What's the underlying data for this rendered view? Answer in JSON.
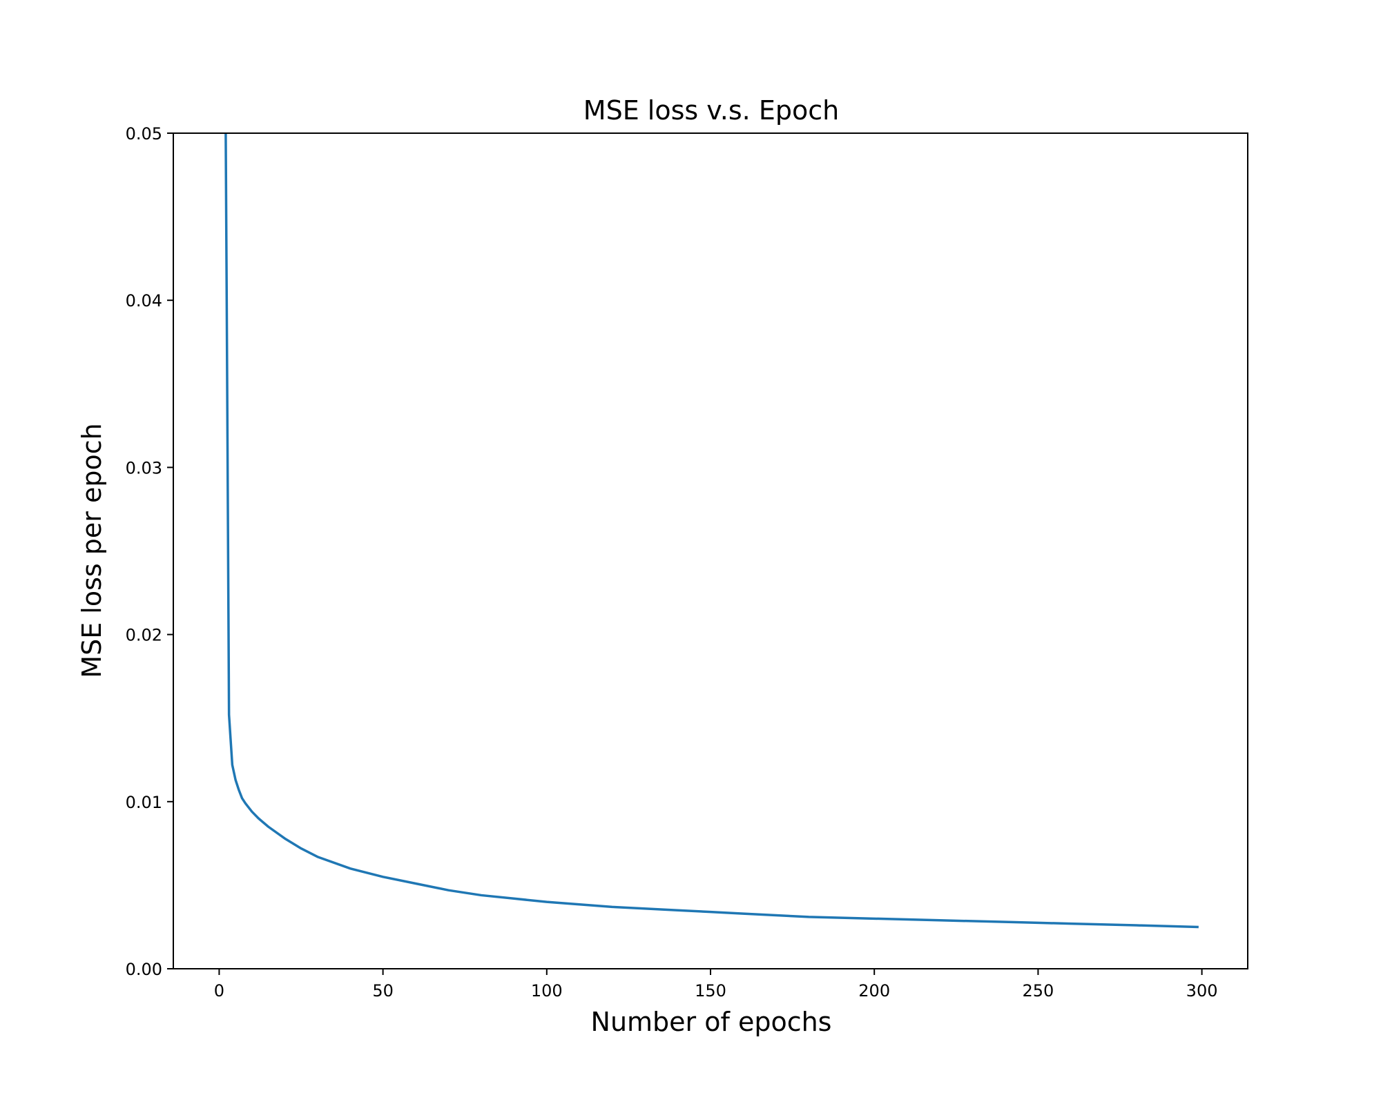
{
  "chart_data": {
    "type": "line",
    "title": "MSE loss v.s. Epoch",
    "xlabel": "Number of epochs",
    "ylabel": "MSE loss per epoch",
    "xlim": [
      -14,
      314
    ],
    "ylim": [
      0,
      0.05
    ],
    "xticks": [
      0,
      50,
      100,
      150,
      200,
      250,
      300
    ],
    "xtick_labels": [
      "0",
      "50",
      "100",
      "150",
      "200",
      "250",
      "300"
    ],
    "yticks": [
      0,
      0.01,
      0.02,
      0.03,
      0.04,
      0.05
    ],
    "ytick_labels": [
      "0.00",
      "0.01",
      "0.02",
      "0.03",
      "0.04",
      "0.05"
    ],
    "grid": false,
    "series": [
      {
        "color": "#1f77b4",
        "x": [
          2,
          2.3,
          3,
          4,
          5,
          6,
          7,
          8,
          10,
          12,
          15,
          20,
          25,
          30,
          40,
          50,
          60,
          70,
          80,
          90,
          100,
          120,
          140,
          150,
          160,
          180,
          200,
          220,
          240,
          250,
          260,
          280,
          299
        ],
        "y": [
          0.05,
          0.04,
          0.0152,
          0.0122,
          0.0113,
          0.0107,
          0.0102,
          0.0099,
          0.0094,
          0.009,
          0.0085,
          0.0078,
          0.0072,
          0.0067,
          0.006,
          0.0055,
          0.0051,
          0.0047,
          0.0044,
          0.0042,
          0.004,
          0.0037,
          0.0035,
          0.0034,
          0.0033,
          0.0031,
          0.003,
          0.0029,
          0.0028,
          0.00275,
          0.0027,
          0.0026,
          0.0025
        ]
      }
    ]
  }
}
